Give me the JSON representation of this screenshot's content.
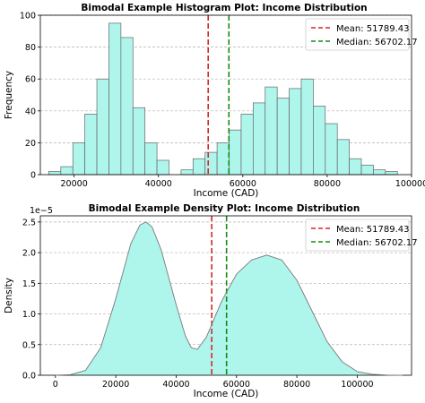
{
  "figure": {
    "background": "#ffffff",
    "bar_fill": "#aef5ec",
    "bar_edge": "#666666",
    "mean_color": "#d62728",
    "median_color": "#138c13"
  },
  "chart_data": [
    {
      "type": "bar",
      "title": "Bimodal Example Histogram Plot: Income Distribution",
      "xlabel": "Income (CAD)",
      "ylabel": "Frequency",
      "xlim": [
        12000,
        100000
      ],
      "ylim": [
        0,
        100
      ],
      "x_ticks": [
        20000,
        40000,
        60000,
        80000,
        100000
      ],
      "x_tick_labels": [
        "20000",
        "40000",
        "60000",
        "80000",
        "100000"
      ],
      "y_ticks": [
        0,
        20,
        40,
        60,
        80,
        100
      ],
      "y_tick_labels": [
        "0",
        "20",
        "40",
        "60",
        "80",
        "100"
      ],
      "grid": "y-dashed",
      "legend_position": "top-right",
      "bin_edges": [
        14000,
        16850,
        19700,
        22550,
        25400,
        28250,
        31100,
        33950,
        36800,
        39650,
        42500,
        45350,
        48200,
        51050,
        53900,
        56750,
        59600,
        62450,
        65300,
        68150,
        71000,
        73850,
        76700,
        79550,
        82400,
        85250,
        88100,
        90950,
        93800,
        96650
      ],
      "counts": [
        2,
        5,
        20,
        38,
        60,
        95,
        86,
        42,
        20,
        9,
        0,
        3,
        10,
        14,
        20,
        28,
        38,
        45,
        55,
        48,
        54,
        60,
        43,
        32,
        22,
        10,
        6,
        3,
        2
      ],
      "vlines": [
        {
          "name": "Mean: 51789.43",
          "x": 51789.43,
          "style": "dashed"
        },
        {
          "name": "Median: 56702.17",
          "x": 56702.17,
          "style": "dashed"
        }
      ]
    },
    {
      "type": "area",
      "title": "Bimodal Example Density Plot: Income Distribution",
      "xlabel": "Income (CAD)",
      "ylabel": "Density",
      "y_scale_note": "1e−5",
      "xlim": [
        -5000,
        118000
      ],
      "ylim": [
        0,
        2.6
      ],
      "x_ticks": [
        0,
        20000,
        40000,
        60000,
        80000,
        100000
      ],
      "x_tick_labels": [
        "0",
        "20000",
        "40000",
        "60000",
        "80000",
        "100000"
      ],
      "y_ticks": [
        0,
        0.5,
        1.0,
        1.5,
        2.0,
        2.5
      ],
      "y_tick_labels": [
        "0.0",
        "0.5",
        "1.0",
        "1.5",
        "2.0",
        "2.5"
      ],
      "grid": "y-dashed",
      "legend_position": "top-right",
      "x": [
        0,
        5000,
        10000,
        15000,
        20000,
        25000,
        28000,
        30000,
        32000,
        35000,
        40000,
        43000,
        45000,
        47000,
        50000,
        55000,
        60000,
        65000,
        70000,
        75000,
        80000,
        85000,
        90000,
        95000,
        100000,
        105000,
        110000,
        115000
      ],
      "y": [
        0.0,
        0.01,
        0.08,
        0.45,
        1.25,
        2.15,
        2.45,
        2.5,
        2.42,
        2.05,
        1.15,
        0.65,
        0.45,
        0.42,
        0.62,
        1.2,
        1.65,
        1.88,
        1.96,
        1.88,
        1.55,
        1.05,
        0.55,
        0.22,
        0.06,
        0.015,
        0.002,
        0.0
      ],
      "vlines": [
        {
          "name": "Mean: 51789.43",
          "x": 51789.43,
          "style": "dashed"
        },
        {
          "name": "Median: 56702.17",
          "x": 56702.17,
          "style": "dashed"
        }
      ]
    }
  ]
}
